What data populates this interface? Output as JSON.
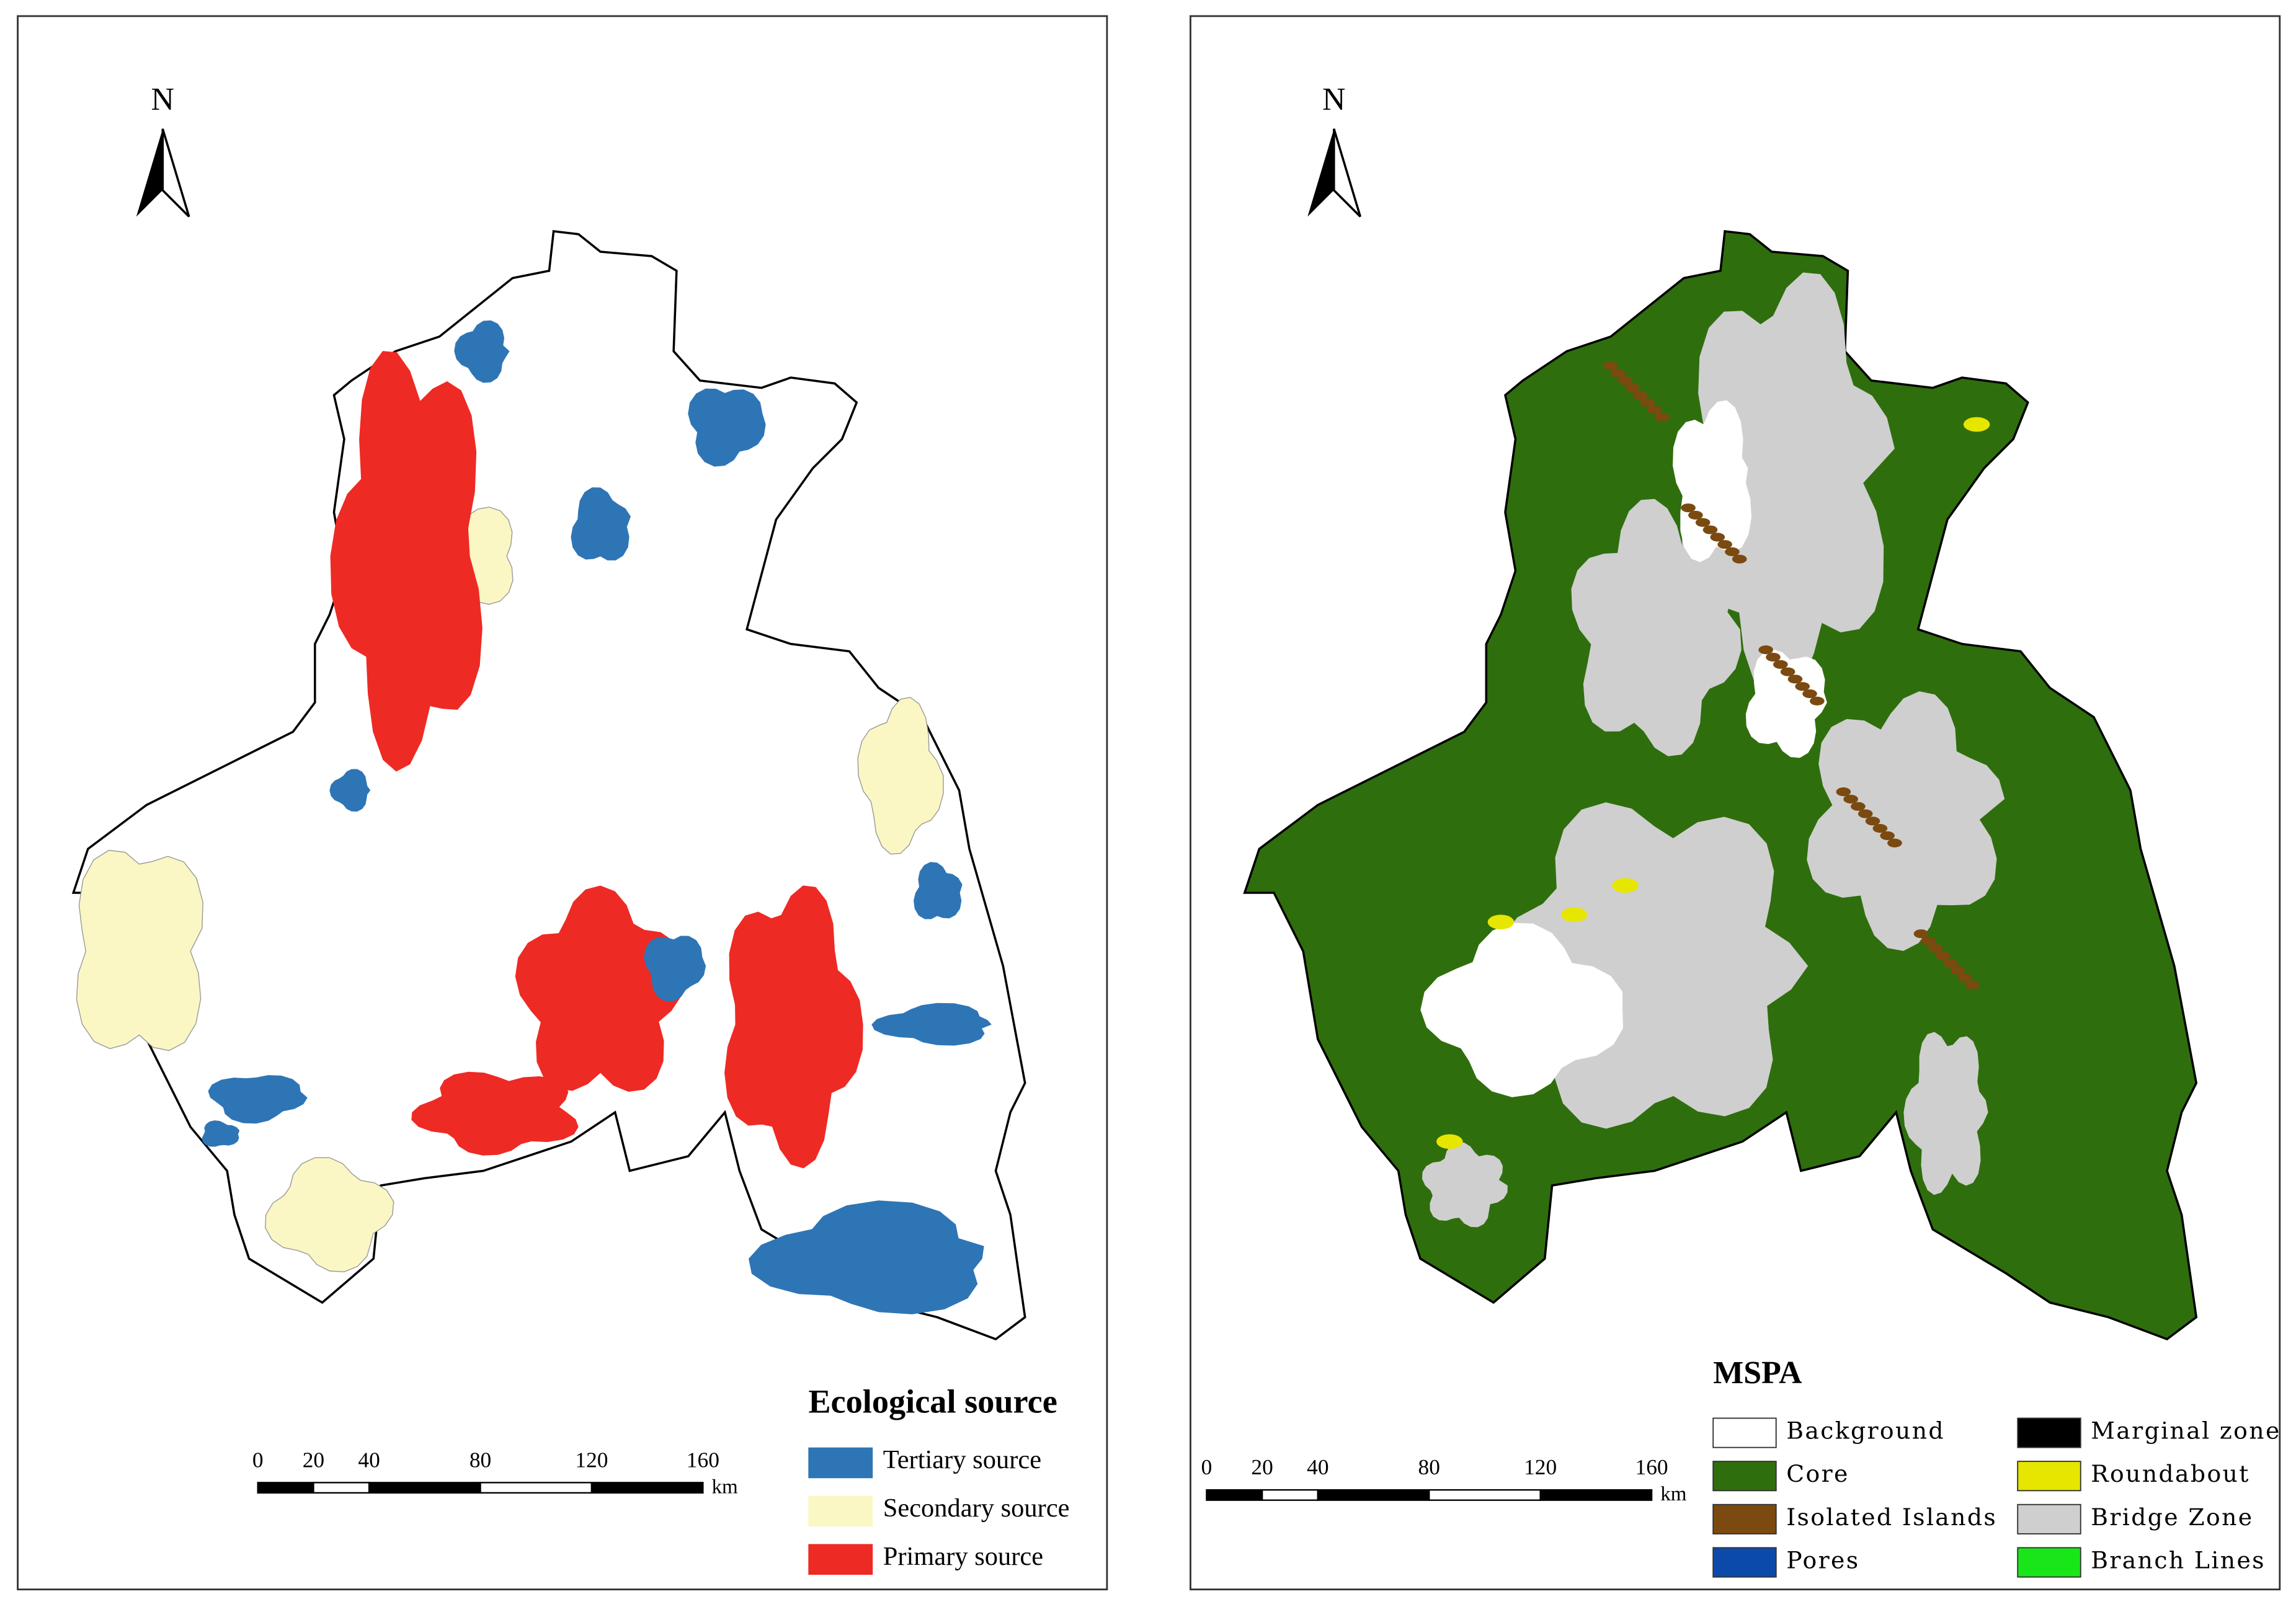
{
  "maps": [
    {
      "north": "N",
      "scale_bar": {
        "ticks": [
          0,
          20,
          40,
          80,
          120,
          160
        ],
        "unit": "km"
      },
      "legend": {
        "title": "Ecological source",
        "items": [
          {
            "label": "Tertiary source",
            "color": "#2e75b6"
          },
          {
            "label": "Secondary source",
            "color": "#fbf7c4"
          },
          {
            "label": "Primary source",
            "color": "#ee2a24"
          }
        ]
      }
    },
    {
      "north": "N",
      "scale_bar": {
        "ticks": [
          0,
          20,
          40,
          80,
          120,
          160
        ],
        "unit": "km"
      },
      "legend": {
        "title": "MSPA",
        "items": [
          {
            "label": "Background",
            "color": "#ffffff"
          },
          {
            "label": "Core",
            "color": "#2f6e0d"
          },
          {
            "label": "Isolated Islands",
            "color": "#7b4a10"
          },
          {
            "label": "Pores",
            "color": "#0b4aa8"
          },
          {
            "label": "Marginal zone",
            "color": "#000000"
          },
          {
            "label": "Roundabout",
            "color": "#e6e600"
          },
          {
            "label": "Bridge Zone",
            "color": "#cfcfcf"
          },
          {
            "label": "Branch Lines",
            "color": "#19e619"
          }
        ]
      }
    }
  ]
}
